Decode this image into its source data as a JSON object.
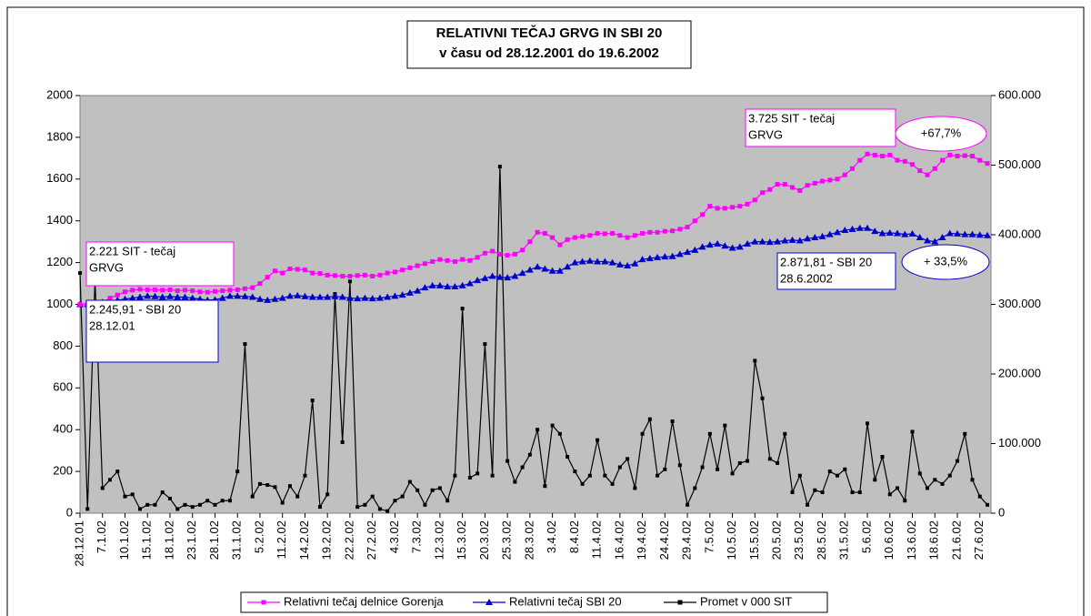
{
  "chart_data": {
    "type": "line",
    "title": [
      "RELATIVNI TEČAJ GRVG IN  SBI 20",
      "v času od 28.12.2001 do 19.6.2002"
    ],
    "categories": [
      "28.12.01",
      null,
      null,
      "7.1.02",
      null,
      null,
      "10.1.02",
      null,
      null,
      "15.1.02",
      null,
      null,
      "18.1.02",
      null,
      null,
      "23.1.02",
      null,
      null,
      "28.1.02",
      null,
      null,
      "31.1.02",
      null,
      null,
      "5.2.02",
      null,
      null,
      "11.2.02",
      null,
      null,
      "14.2.02",
      null,
      null,
      "19.2.02",
      null,
      null,
      "22.2.02",
      null,
      null,
      "27.2.02",
      null,
      null,
      "4.3.02",
      null,
      null,
      "7.3.02",
      null,
      null,
      "12.3.02",
      null,
      null,
      "15.3.02",
      null,
      null,
      "20.3.02",
      null,
      null,
      "25.3.02",
      null,
      null,
      "28.3.02",
      null,
      null,
      "3.4.02",
      null,
      null,
      "8.4.02",
      null,
      null,
      "11.4.02",
      null,
      null,
      "16.4.02",
      null,
      null,
      "19.4.02",
      null,
      null,
      "24.4.02",
      null,
      null,
      "29.4.02",
      null,
      null,
      "7.5.02",
      null,
      null,
      "10.5.02",
      null,
      null,
      "15.5.02",
      null,
      null,
      "20.5.02",
      null,
      null,
      "23.5.02",
      null,
      null,
      "28.5.02",
      null,
      null,
      "31.5.02",
      null,
      null,
      "5.6.02",
      null,
      null,
      "10.6.02",
      null,
      null,
      "13.6.02",
      null,
      null,
      "18.6.02",
      null,
      null,
      "21.6.02",
      null,
      null,
      "27.6.02",
      null
    ],
    "series": [
      {
        "name": "Relativni tečaj delnice Gorenja",
        "color": "#ff00ff",
        "marker": "square",
        "values": [
          1000,
          1000,
          1005,
          1010,
          1030,
          1045,
          1060,
          1068,
          1072,
          1070,
          1070,
          1068,
          1070,
          1065,
          1068,
          1065,
          1060,
          1058,
          1062,
          1065,
          1068,
          1070,
          1075,
          1080,
          1100,
          1130,
          1160,
          1150,
          1170,
          1168,
          1165,
          1150,
          1148,
          1140,
          1138,
          1135,
          1135,
          1138,
          1140,
          1135,
          1140,
          1150,
          1155,
          1165,
          1175,
          1185,
          1195,
          1205,
          1215,
          1210,
          1205,
          1215,
          1210,
          1225,
          1245,
          1255,
          1240,
          1235,
          1240,
          1260,
          1300,
          1345,
          1340,
          1320,
          1285,
          1310,
          1320,
          1325,
          1330,
          1340,
          1338,
          1340,
          1330,
          1320,
          1330,
          1340,
          1345,
          1345,
          1350,
          1352,
          1360,
          1370,
          1400,
          1430,
          1470,
          1460,
          1460,
          1465,
          1470,
          1480,
          1500,
          1535,
          1550,
          1575,
          1575,
          1560,
          1545,
          1570,
          1580,
          1590,
          1595,
          1600,
          1620,
          1650,
          1690,
          1720,
          1715,
          1710,
          1715,
          1690,
          1685,
          1670,
          1640,
          1620,
          1650,
          1690,
          1715,
          1710,
          1712,
          1710,
          1690,
          1675
        ]
      },
      {
        "name": "Relativni tečaj SBI 20",
        "color": "#0000cc",
        "marker": "triangle",
        "values": [
          1000,
          1000,
          1005,
          1010,
          1015,
          1020,
          1025,
          1030,
          1035,
          1040,
          1038,
          1035,
          1038,
          1035,
          1035,
          1030,
          1025,
          1020,
          1022,
          1030,
          1040,
          1040,
          1038,
          1035,
          1025,
          1020,
          1025,
          1030,
          1040,
          1042,
          1038,
          1035,
          1035,
          1035,
          1038,
          1035,
          1030,
          1028,
          1030,
          1028,
          1030,
          1035,
          1040,
          1045,
          1055,
          1065,
          1080,
          1090,
          1090,
          1085,
          1085,
          1090,
          1100,
          1115,
          1125,
          1135,
          1130,
          1128,
          1135,
          1150,
          1165,
          1180,
          1170,
          1160,
          1160,
          1180,
          1200,
          1205,
          1208,
          1205,
          1205,
          1200,
          1190,
          1185,
          1195,
          1215,
          1220,
          1225,
          1228,
          1230,
          1240,
          1250,
          1260,
          1275,
          1285,
          1290,
          1280,
          1270,
          1275,
          1290,
          1300,
          1300,
          1298,
          1300,
          1305,
          1308,
          1305,
          1315,
          1320,
          1325,
          1335,
          1345,
          1355,
          1360,
          1365,
          1365,
          1350,
          1340,
          1342,
          1340,
          1335,
          1338,
          1320,
          1305,
          1300,
          1320,
          1340,
          1338,
          1335,
          1335,
          1332,
          1330
        ]
      },
      {
        "name": "Promet v 000 SIT",
        "color": "#000000",
        "marker": "square",
        "axis": "y2",
        "values": [
          345000,
          6000,
          336000,
          36000,
          48000,
          60000,
          24000,
          27000,
          6000,
          12000,
          12000,
          30000,
          21000,
          6000,
          12000,
          9000,
          12000,
          18000,
          12000,
          18000,
          18000,
          60000,
          243000,
          24000,
          42000,
          40500,
          37500,
          15000,
          39000,
          24000,
          54000,
          162000,
          9000,
          27000,
          315000,
          102000,
          333000,
          9000,
          12000,
          24000,
          6000,
          3000,
          18000,
          24000,
          45000,
          33000,
          12000,
          33000,
          36000,
          18000,
          54000,
          294000,
          51000,
          57000,
          243000,
          54000,
          498000,
          75000,
          45000,
          66000,
          84000,
          120000,
          39000,
          126000,
          114000,
          81000,
          60000,
          42000,
          54000,
          105000,
          54000,
          42000,
          66000,
          78000,
          36000,
          114000,
          135000,
          54000,
          63000,
          132000,
          69000,
          12000,
          36000,
          66000,
          114000,
          63000,
          126000,
          57000,
          72000,
          75000,
          219000,
          165000,
          78000,
          72000,
          114000,
          30000,
          54000,
          12000,
          33000,
          30000,
          60000,
          54000,
          63000,
          30000,
          30000,
          129000,
          48000,
          81000,
          27000,
          36000,
          18000,
          117000,
          57000,
          36000,
          48000,
          42000,
          54000,
          75000,
          114000,
          48000,
          24000,
          12000
        ]
      }
    ],
    "ylim": [
      0,
      2000
    ],
    "yticks": [
      0,
      200,
      400,
      600,
      800,
      1000,
      1200,
      1400,
      1600,
      1800,
      2000
    ],
    "y2lim": [
      0,
      600000
    ],
    "y2ticks": [
      0,
      {
        "value": 100000,
        "label": "100.000"
      },
      {
        "value": 200000,
        "label": "200.000"
      },
      {
        "value": 300000,
        "label": "300.000"
      },
      {
        "value": 400000,
        "label": "400.000"
      },
      {
        "value": 500000,
        "label": "500.000"
      },
      {
        "value": 600000,
        "label": "600.000"
      }
    ],
    "legend": "bottom",
    "annotations": [
      {
        "lines": [
          "2.221 SIT - tečaj",
          "GRVG"
        ],
        "color": "#ff00ff"
      },
      {
        "lines": [
          "2.245,91 - SBI 20",
          "28.12.01"
        ],
        "color": "#0000cc"
      },
      {
        "lines": [
          "3.725 SIT - tečaj",
          "GRVG",
          "28.6.2002"
        ],
        "color": "#ff00ff"
      },
      {
        "lines": [
          "+67,7%"
        ],
        "color": "#ff00ff"
      },
      {
        "lines": [
          "2.871,81 - SBI 20",
          "28.6.2002"
        ],
        "color": "#0000cc"
      },
      {
        "lines": [
          "+ 33,5%"
        ],
        "color": "#0000cc"
      }
    ]
  }
}
